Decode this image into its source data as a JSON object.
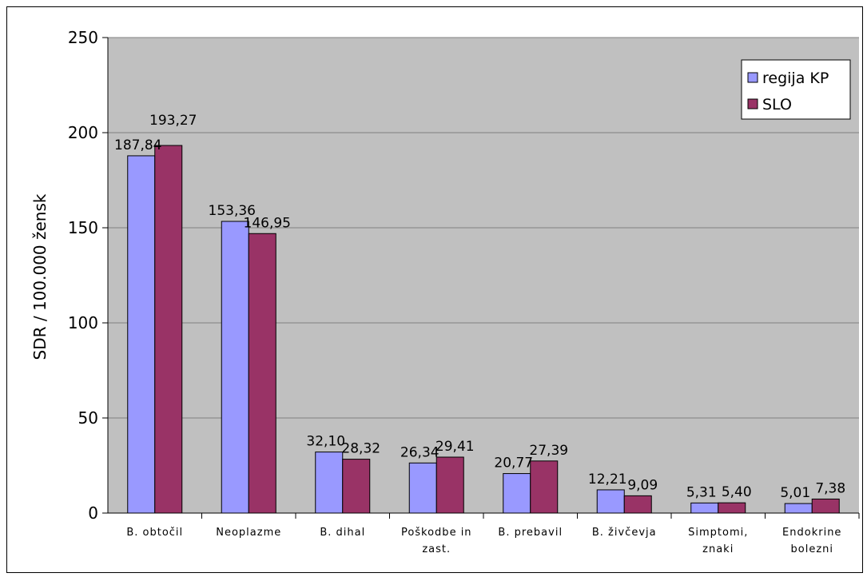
{
  "chart_data": {
    "type": "bar",
    "ylabel": "SDR / 100.000 žensk",
    "ylim": [
      0,
      250
    ],
    "yticks": [
      "0",
      "50",
      "100",
      "150",
      "200",
      "250"
    ],
    "grid": true,
    "legend_position": "top-right",
    "categories": [
      [
        "B. obtočil"
      ],
      [
        "Neoplazme"
      ],
      [
        "B. dihal"
      ],
      [
        "Poškodbe in",
        "zast."
      ],
      [
        "B. prebavil"
      ],
      [
        "B. živčevja"
      ],
      [
        "Simptomi,",
        "znaki"
      ],
      [
        "Endokrine",
        "bolezni"
      ]
    ],
    "series": [
      {
        "name": "regija KP",
        "color": "#9999ff",
        "values": [
          187.84,
          153.36,
          32.1,
          26.34,
          20.77,
          12.21,
          5.31,
          5.01
        ],
        "labels": [
          "187,84",
          "153,36",
          "32,10",
          "26,34",
          "20,77",
          "12,21",
          "5,31",
          "5,01"
        ]
      },
      {
        "name": "SLO",
        "color": "#993366",
        "values": [
          193.27,
          146.95,
          28.32,
          29.41,
          27.39,
          9.09,
          5.4,
          7.38
        ],
        "labels": [
          "193,27",
          "146,95",
          "28,32",
          "29,41",
          "27,39",
          "9,09",
          "5,40",
          "7,38"
        ]
      }
    ],
    "plot_background": "#c0c0c0"
  }
}
